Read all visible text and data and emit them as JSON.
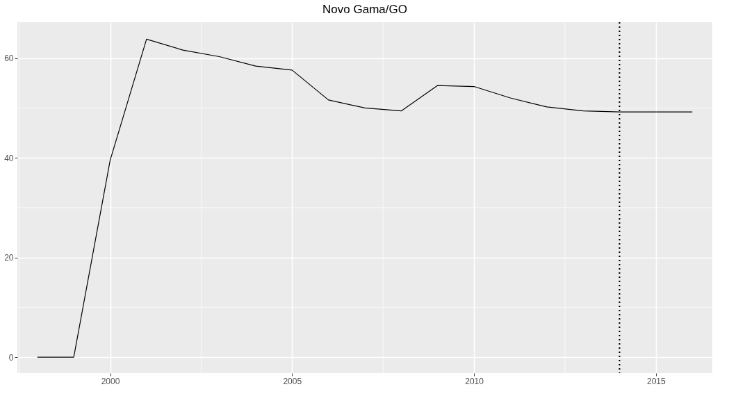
{
  "chart_data": {
    "type": "line",
    "title": "Novo Gama/GO",
    "x": [
      1998,
      1999,
      2000,
      2001,
      2002,
      2003,
      2004,
      2005,
      2006,
      2007,
      2008,
      2009,
      2010,
      2011,
      2012,
      2013,
      2014,
      2015,
      2016
    ],
    "series": [
      {
        "color": "#000000",
        "values": [
          0,
          0,
          39.5,
          63.8,
          61.6,
          60.3,
          58.4,
          57.6,
          51.6,
          50.0,
          49.4,
          54.5,
          54.3,
          52.0,
          50.2,
          49.4,
          49.2,
          49.2,
          49.2
        ]
      }
    ],
    "xlim": [
      1997.45,
      2016.55
    ],
    "xticks": [
      2000,
      2005,
      2010,
      2015
    ],
    "ylim": [
      -3.2,
      67.2
    ],
    "yticks": [
      0,
      20,
      40,
      60
    ],
    "grid": true,
    "line_style": "solid",
    "marker": "none",
    "ref_lines": [
      {
        "axis": "x",
        "value": 2014,
        "line_style": "dotted",
        "color": "#000000"
      }
    ]
  }
}
